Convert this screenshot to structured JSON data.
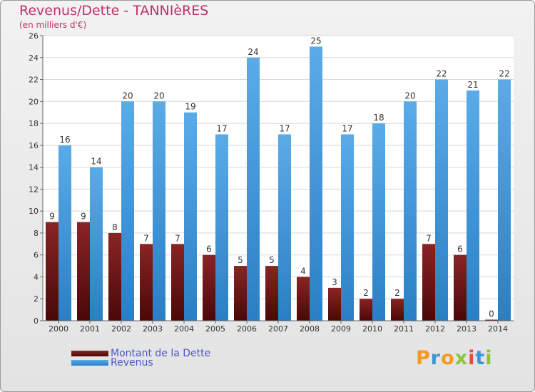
{
  "header": {
    "title": "Revenus/Dette - TANNIèRES",
    "subtitle": "(en milliers d'€)"
  },
  "legend": {
    "debt_label": "Montant de la Dette",
    "revenue_label": "Revenus"
  },
  "logo": {
    "text": "Proxiti",
    "letters": [
      {
        "ch": "P",
        "color": "#f39a1f"
      },
      {
        "ch": "r",
        "color": "#3a97d6"
      },
      {
        "ch": "o",
        "color": "#f39a1f"
      },
      {
        "ch": "x",
        "color": "#8cc43c"
      },
      {
        "ch": "i",
        "color": "#e84c3d"
      },
      {
        "ch": "t",
        "color": "#3a97d6"
      },
      {
        "ch": "i",
        "color": "#8cc43c"
      }
    ]
  },
  "colors": {
    "debt_top": "#8a2424",
    "debt_bottom": "#4a0808",
    "revenue_top": "#5aabe8",
    "revenue_bottom": "#2a7fc4",
    "title": "#c0306a",
    "legend_text": "#4a56c8"
  },
  "chart_data": {
    "type": "bar",
    "title": "Revenus/Dette - TANNIèRES",
    "ylabel": "(en milliers d'€)",
    "xlabel": "",
    "categories": [
      "2000",
      "2001",
      "2002",
      "2003",
      "2004",
      "2005",
      "2006",
      "2007",
      "2008",
      "2009",
      "2010",
      "2011",
      "2012",
      "2013",
      "2014"
    ],
    "series": [
      {
        "name": "Montant de la Dette",
        "values": [
          9,
          9,
          8,
          7,
          7,
          6,
          5,
          5,
          4,
          3,
          2,
          2,
          7,
          6,
          0
        ]
      },
      {
        "name": "Revenus",
        "values": [
          16,
          14,
          20,
          20,
          19,
          17,
          24,
          17,
          25,
          17,
          18,
          20,
          22,
          21,
          22
        ]
      }
    ],
    "ylim": [
      0,
      26
    ],
    "yticks": [
      0,
      2,
      4,
      6,
      8,
      10,
      12,
      14,
      16,
      18,
      20,
      22,
      24,
      26
    ],
    "grid": true,
    "legend": "bottom-left"
  }
}
